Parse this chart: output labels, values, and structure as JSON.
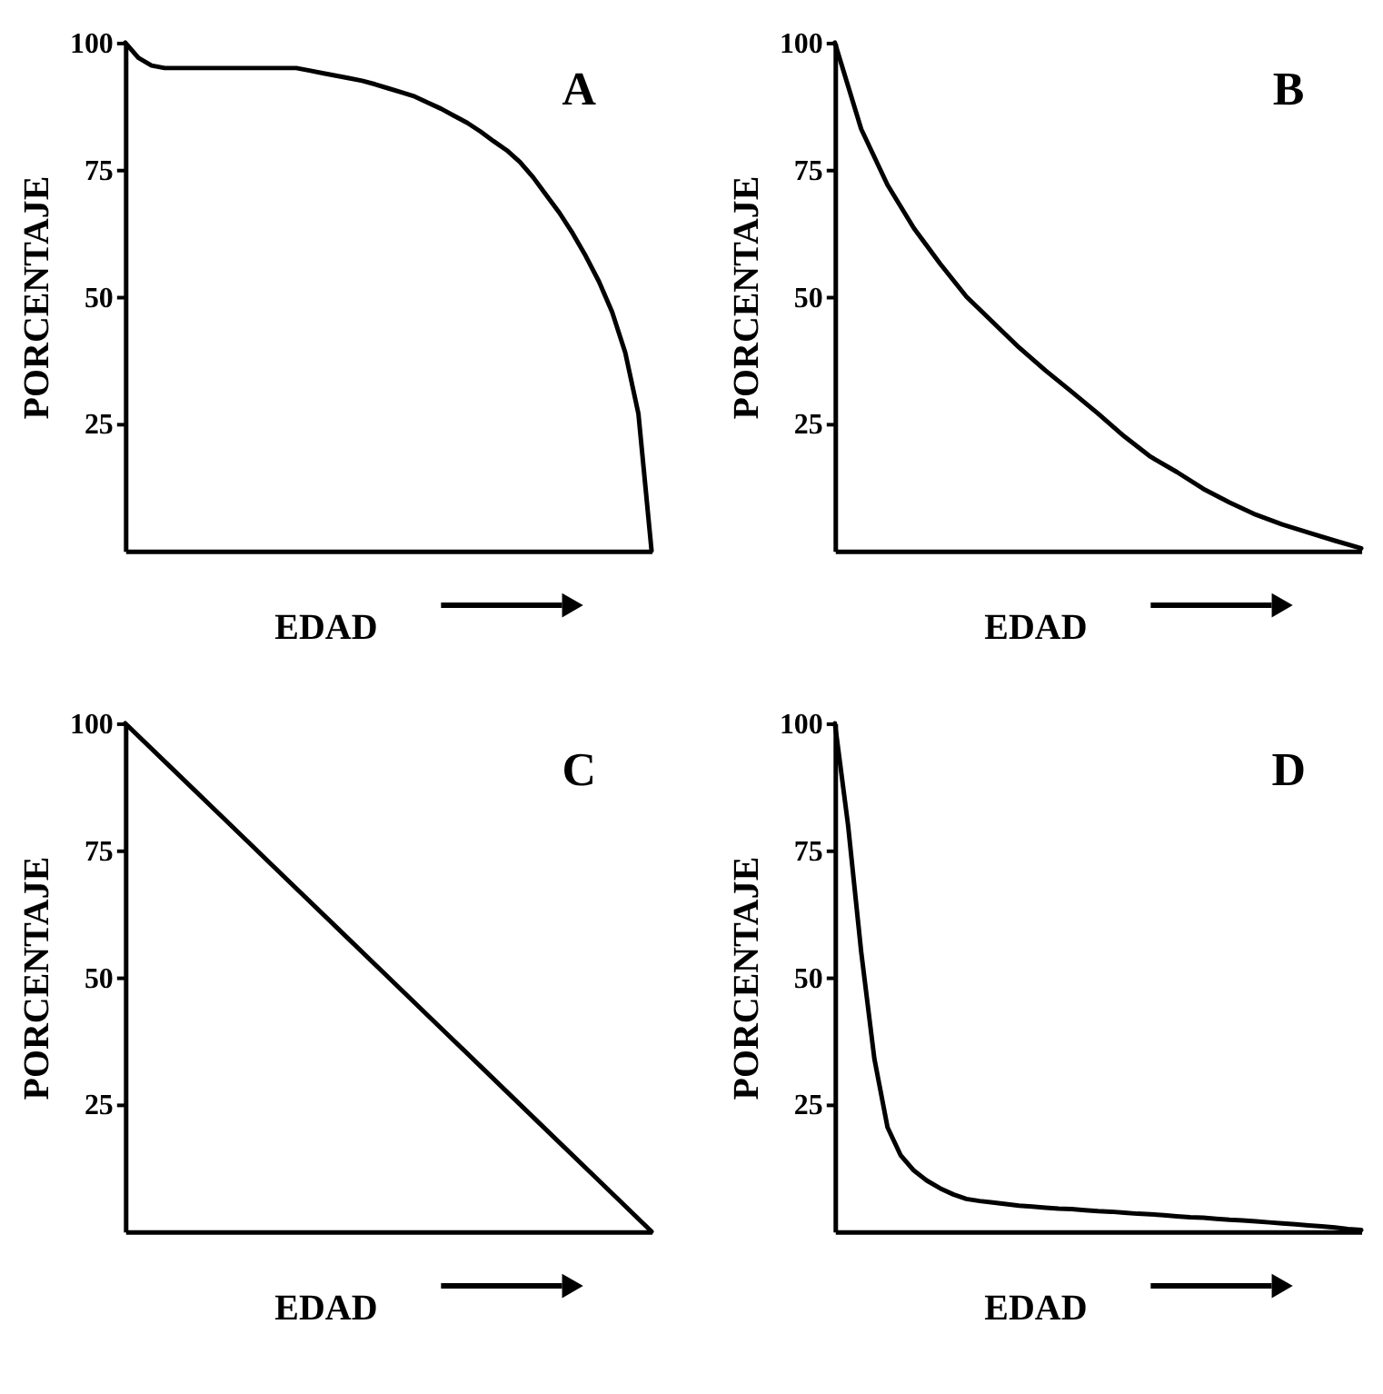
{
  "chart_data": [
    {
      "type": "line",
      "title": "A",
      "xlabel": "EDAD",
      "ylabel": "PORCENTAJE",
      "color": "#000000",
      "ylim": [
        0,
        100
      ],
      "yticks": [
        25,
        50,
        75,
        100
      ],
      "categories": [
        null,
        null,
        null,
        null,
        null,
        null,
        null,
        null,
        null,
        null,
        null,
        null,
        null,
        null,
        null,
        null,
        null,
        null,
        null,
        null,
        null,
        null,
        null,
        null,
        null,
        null,
        null,
        null,
        null,
        null,
        null,
        null,
        null,
        null,
        null,
        null,
        null,
        null,
        null,
        null,
        null
      ],
      "values": [
        100,
        97,
        95.5,
        95,
        95,
        95,
        95,
        95,
        95,
        95,
        95,
        95,
        95,
        95,
        94.5,
        94,
        93.5,
        93,
        92.5,
        91.8,
        91,
        90.2,
        89.4,
        88.2,
        87,
        85.6,
        84.2,
        82.5,
        80.6,
        78.8,
        76.5,
        73.5,
        70,
        66.5,
        62.5,
        58,
        53,
        47,
        39,
        27,
        0
      ]
    },
    {
      "type": "line",
      "title": "B",
      "xlabel": "EDAD",
      "ylabel": "PORCENTAJE",
      "color": "#000000",
      "ylim": [
        0,
        100
      ],
      "yticks": [
        25,
        50,
        75,
        100
      ],
      "categories": [
        null,
        null,
        null,
        null,
        null,
        null,
        null,
        null,
        null,
        null,
        null,
        null,
        null,
        null,
        null,
        null,
        null,
        null,
        null,
        null,
        null
      ],
      "values": [
        100,
        83,
        72,
        63.5,
        56.5,
        50,
        45,
        40,
        35.5,
        31.3,
        27,
        22.5,
        18.5,
        15.5,
        12.2,
        9.5,
        7.1,
        5.2,
        3.6,
        2,
        0.5
      ]
    },
    {
      "type": "line",
      "title": "C",
      "xlabel": "EDAD",
      "ylabel": "PORCENTAJE",
      "color": "#000000",
      "ylim": [
        0,
        100
      ],
      "yticks": [
        25,
        50,
        75,
        100
      ],
      "categories": [
        null,
        null,
        null,
        null,
        null,
        null,
        null,
        null,
        null,
        null,
        null
      ],
      "values": [
        100,
        90,
        80,
        70,
        60,
        50,
        40,
        30,
        20,
        10,
        0
      ]
    },
    {
      "type": "line",
      "title": "D",
      "xlabel": "EDAD",
      "ylabel": "PORCENTAJE",
      "color": "#000000",
      "ylim": [
        0,
        100
      ],
      "yticks": [
        25,
        50,
        75,
        100
      ],
      "categories": [
        null,
        null,
        null,
        null,
        null,
        null,
        null,
        null,
        null,
        null,
        null,
        null,
        null,
        null,
        null,
        null,
        null,
        null,
        null,
        null,
        null,
        null,
        null,
        null,
        null,
        null,
        null,
        null,
        null,
        null,
        null,
        null,
        null,
        null,
        null,
        null,
        null,
        null,
        null,
        null,
        null
      ],
      "values": [
        100,
        80,
        55,
        34,
        20.5,
        15,
        12,
        10,
        8.5,
        7.3,
        6.4,
        6.0,
        5.7,
        5.4,
        5.1,
        4.9,
        4.7,
        4.5,
        4.4,
        4.2,
        4.0,
        3.9,
        3.7,
        3.5,
        3.4,
        3.2,
        3.0,
        2.8,
        2.7,
        2.5,
        2.3,
        2.2,
        2.0,
        1.8,
        1.6,
        1.4,
        1.2,
        1.0,
        0.8,
        0.5,
        0.3
      ]
    }
  ]
}
